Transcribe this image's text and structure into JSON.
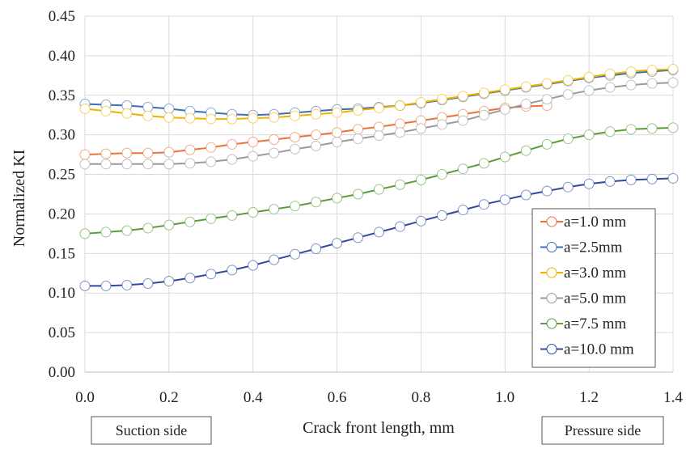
{
  "chart_data": {
    "type": "line",
    "title": "",
    "xlabel": "Crack front length, mm",
    "ylabel": "Normalized KI",
    "xlim": [
      0,
      1.4
    ],
    "ylim": [
      0,
      0.45
    ],
    "x_ticks": [
      "0.0",
      "0.2",
      "0.4",
      "0.6",
      "0.8",
      "1.0",
      "1.2",
      "1.4"
    ],
    "y_ticks": [
      "0.00",
      "0.05",
      "0.10",
      "0.15",
      "0.20",
      "0.25",
      "0.30",
      "0.35",
      "0.40",
      "0.45"
    ],
    "grid": true,
    "legend_position": "right",
    "annotations": {
      "left_box": "Suction side",
      "right_box": "Pressure side"
    },
    "series": [
      {
        "name": "a=1.0 mm",
        "color": "#e8743b",
        "x": [
          0.0,
          0.05,
          0.1,
          0.15,
          0.2,
          0.25,
          0.3,
          0.35,
          0.4,
          0.45,
          0.5,
          0.55,
          0.6,
          0.65,
          0.7,
          0.75,
          0.8,
          0.85,
          0.9,
          0.95,
          1.0,
          1.05,
          1.1
        ],
        "y": [
          0.275,
          0.276,
          0.277,
          0.277,
          0.278,
          0.281,
          0.284,
          0.288,
          0.291,
          0.294,
          0.297,
          0.3,
          0.303,
          0.307,
          0.31,
          0.314,
          0.318,
          0.322,
          0.326,
          0.33,
          0.334,
          0.336,
          0.337
        ]
      },
      {
        "name": "a=2.5mm",
        "color": "#3d6fb6",
        "x": [
          0.0,
          0.05,
          0.1,
          0.15,
          0.2,
          0.25,
          0.3,
          0.35,
          0.4,
          0.45,
          0.5,
          0.55,
          0.6,
          0.65,
          0.7,
          0.75,
          0.8,
          0.85,
          0.9,
          0.95,
          1.0,
          1.05,
          1.1,
          1.15,
          1.2,
          1.25,
          1.3,
          1.35,
          1.4
        ],
        "y": [
          0.339,
          0.338,
          0.337,
          0.335,
          0.333,
          0.33,
          0.328,
          0.326,
          0.325,
          0.326,
          0.328,
          0.33,
          0.332,
          0.333,
          0.335,
          0.337,
          0.34,
          0.344,
          0.348,
          0.352,
          0.356,
          0.36,
          0.364,
          0.368,
          0.372,
          0.375,
          0.378,
          0.38,
          0.382
        ]
      },
      {
        "name": "a=3.0 mm",
        "color": "#f2b200",
        "x": [
          0.0,
          0.05,
          0.1,
          0.15,
          0.2,
          0.25,
          0.3,
          0.35,
          0.4,
          0.45,
          0.5,
          0.55,
          0.6,
          0.65,
          0.7,
          0.75,
          0.8,
          0.85,
          0.9,
          0.95,
          1.0,
          1.05,
          1.1,
          1.15,
          1.2,
          1.25,
          1.3,
          1.35,
          1.4
        ],
        "y": [
          0.333,
          0.33,
          0.327,
          0.324,
          0.322,
          0.321,
          0.32,
          0.32,
          0.321,
          0.322,
          0.324,
          0.326,
          0.328,
          0.331,
          0.334,
          0.337,
          0.341,
          0.345,
          0.349,
          0.353,
          0.357,
          0.361,
          0.365,
          0.369,
          0.373,
          0.377,
          0.38,
          0.382,
          0.383
        ]
      },
      {
        "name": "a=5.0 mm",
        "color": "#9a9a9a",
        "x": [
          0.0,
          0.05,
          0.1,
          0.15,
          0.2,
          0.25,
          0.3,
          0.35,
          0.4,
          0.45,
          0.5,
          0.55,
          0.6,
          0.65,
          0.7,
          0.75,
          0.8,
          0.85,
          0.9,
          0.95,
          1.0,
          1.05,
          1.1,
          1.15,
          1.2,
          1.25,
          1.3,
          1.35,
          1.4
        ],
        "y": [
          0.263,
          0.263,
          0.263,
          0.263,
          0.263,
          0.264,
          0.266,
          0.269,
          0.273,
          0.277,
          0.282,
          0.286,
          0.291,
          0.295,
          0.299,
          0.303,
          0.308,
          0.313,
          0.318,
          0.325,
          0.332,
          0.339,
          0.345,
          0.351,
          0.356,
          0.36,
          0.363,
          0.365,
          0.366
        ]
      },
      {
        "name": "a=7.5 mm",
        "color": "#5a9e3a",
        "x": [
          0.0,
          0.05,
          0.1,
          0.15,
          0.2,
          0.25,
          0.3,
          0.35,
          0.4,
          0.45,
          0.5,
          0.55,
          0.6,
          0.65,
          0.7,
          0.75,
          0.8,
          0.85,
          0.9,
          0.95,
          1.0,
          1.05,
          1.1,
          1.15,
          1.2,
          1.25,
          1.3,
          1.35,
          1.4
        ],
        "y": [
          0.175,
          0.177,
          0.179,
          0.182,
          0.186,
          0.19,
          0.194,
          0.198,
          0.202,
          0.206,
          0.21,
          0.215,
          0.22,
          0.225,
          0.231,
          0.237,
          0.243,
          0.25,
          0.257,
          0.264,
          0.272,
          0.28,
          0.288,
          0.295,
          0.3,
          0.304,
          0.307,
          0.308,
          0.309
        ]
      },
      {
        "name": "a=10.0 mm",
        "color": "#2f4a9e",
        "x": [
          0.0,
          0.05,
          0.1,
          0.15,
          0.2,
          0.25,
          0.3,
          0.35,
          0.4,
          0.45,
          0.5,
          0.55,
          0.6,
          0.65,
          0.7,
          0.75,
          0.8,
          0.85,
          0.9,
          0.95,
          1.0,
          1.05,
          1.1,
          1.15,
          1.2,
          1.25,
          1.3,
          1.35,
          1.4
        ],
        "y": [
          0.109,
          0.109,
          0.11,
          0.112,
          0.115,
          0.119,
          0.124,
          0.129,
          0.135,
          0.142,
          0.149,
          0.156,
          0.163,
          0.17,
          0.177,
          0.184,
          0.191,
          0.198,
          0.205,
          0.212,
          0.218,
          0.224,
          0.229,
          0.234,
          0.238,
          0.241,
          0.243,
          0.244,
          0.245
        ]
      }
    ]
  }
}
